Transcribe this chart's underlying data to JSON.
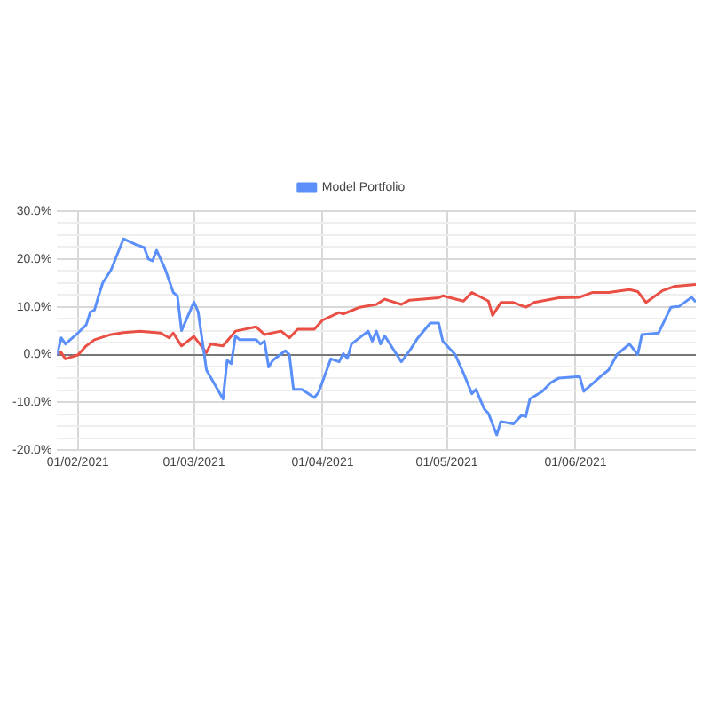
{
  "chart_data": {
    "type": "line",
    "legend": "top",
    "grid": true,
    "marker": "none",
    "line_style": "solid",
    "xlim": [
      "2021-01-27",
      "2021-06-30"
    ],
    "xticks": [
      {
        "value": "2021-02-01",
        "label": "01/02/2021"
      },
      {
        "value": "2021-03-01",
        "label": "01/03/2021"
      },
      {
        "value": "2021-04-01",
        "label": "01/04/2021"
      },
      {
        "value": "2021-05-01",
        "label": "01/05/2021"
      },
      {
        "value": "2021-06-01",
        "label": "01/06/2021"
      }
    ],
    "ylim": [
      -20,
      30
    ],
    "yticks": [
      {
        "value": -20,
        "label": "-20.0%"
      },
      {
        "value": -17.5,
        "label": null
      },
      {
        "value": -15,
        "label": null
      },
      {
        "value": -12.5,
        "label": null
      },
      {
        "value": -10,
        "label": "-10.0%"
      },
      {
        "value": -7.5,
        "label": null
      },
      {
        "value": -5,
        "label": null
      },
      {
        "value": -2.5,
        "label": null
      },
      {
        "value": 0,
        "label": "0.0%"
      },
      {
        "value": 2.5,
        "label": null
      },
      {
        "value": 5,
        "label": null
      },
      {
        "value": 7.5,
        "label": null
      },
      {
        "value": 10,
        "label": "10.0%"
      },
      {
        "value": 12.5,
        "label": null
      },
      {
        "value": 15,
        "label": null
      },
      {
        "value": 17.5,
        "label": null
      },
      {
        "value": 20,
        "label": "20.0%"
      },
      {
        "value": 22.5,
        "label": null
      },
      {
        "value": 25,
        "label": null
      },
      {
        "value": 27.5,
        "label": null
      },
      {
        "value": 30,
        "label": "30.0%"
      }
    ],
    "series": [
      {
        "name": "Model Portfolio",
        "color": "#5b8ff9",
        "x": [
          "2021-01-27",
          "2021-01-28",
          "2021-01-29",
          "2021-02-01",
          "2021-02-03",
          "2021-02-04",
          "2021-02-05",
          "2021-02-06",
          "2021-02-07",
          "2021-02-09",
          "2021-02-12",
          "2021-02-15",
          "2021-02-17",
          "2021-02-18",
          "2021-02-19",
          "2021-02-20",
          "2021-02-22",
          "2021-02-24",
          "2021-02-25",
          "2021-02-26",
          "2021-03-01",
          "2021-03-02",
          "2021-03-04",
          "2021-03-08",
          "2021-03-09",
          "2021-03-10",
          "2021-03-11",
          "2021-03-12",
          "2021-03-16",
          "2021-03-17",
          "2021-03-18",
          "2021-03-19",
          "2021-03-20",
          "2021-03-23",
          "2021-03-24",
          "2021-03-25",
          "2021-03-27",
          "2021-03-30",
          "2021-03-31",
          "2021-04-03",
          "2021-04-05",
          "2021-04-06",
          "2021-04-07",
          "2021-04-08",
          "2021-04-12",
          "2021-04-13",
          "2021-04-14",
          "2021-04-15",
          "2021-04-16",
          "2021-04-20",
          "2021-04-22",
          "2021-04-24",
          "2021-04-27",
          "2021-04-29",
          "2021-04-30",
          "2021-05-03",
          "2021-05-05",
          "2021-05-07",
          "2021-05-08",
          "2021-05-10",
          "2021-05-11",
          "2021-05-13",
          "2021-05-14",
          "2021-05-17",
          "2021-05-19",
          "2021-05-20",
          "2021-05-21",
          "2021-05-24",
          "2021-05-26",
          "2021-05-28",
          "2021-06-02",
          "2021-06-03",
          "2021-06-07",
          "2021-06-09",
          "2021-06-11",
          "2021-06-14",
          "2021-06-16",
          "2021-06-17",
          "2021-06-21",
          "2021-06-24",
          "2021-06-26",
          "2021-06-29",
          "2021-06-30"
        ],
        "values": [
          0,
          3.5,
          2.2,
          4.5,
          6.2,
          8.9,
          9.3,
          12.3,
          15,
          17.7,
          24.2,
          23,
          22.4,
          20,
          19.6,
          21.8,
          18,
          13,
          12.3,
          5,
          11,
          9,
          -3.2,
          -9.3,
          -1.2,
          -1.9,
          3.9,
          3.1,
          3.1,
          2.2,
          2.8,
          -2.6,
          -1.2,
          0.8,
          0,
          -7.3,
          -7.3,
          -9,
          -8,
          -0.9,
          -1.5,
          0.2,
          -0.8,
          2.2,
          4.9,
          2.8,
          4.9,
          2.2,
          3.9,
          -1.5,
          0.8,
          3.5,
          6.6,
          6.6,
          2.8,
          0,
          -3.9,
          -8.2,
          -7.3,
          -11.4,
          -12.3,
          -16.8,
          -14,
          -14.5,
          -12.7,
          -13,
          -9.3,
          -7.7,
          -5.9,
          -4.9,
          -4.6,
          -7.7,
          -4.6,
          -3.2,
          0,
          2.2,
          0,
          4.2,
          4.5,
          9.9,
          10.1,
          12,
          11
        ]
      },
      {
        "color": "#ea4f45",
        "x": [
          "2021-01-27",
          "2021-01-28",
          "2021-01-29",
          "2021-02-01",
          "2021-02-03",
          "2021-02-05",
          "2021-02-09",
          "2021-02-12",
          "2021-02-16",
          "2021-02-21",
          "2021-02-23",
          "2021-02-24",
          "2021-02-26",
          "2021-03-01",
          "2021-03-04",
          "2021-03-05",
          "2021-03-08",
          "2021-03-11",
          "2021-03-16",
          "2021-03-18",
          "2021-03-22",
          "2021-03-24",
          "2021-03-26",
          "2021-03-30",
          "2021-04-01",
          "2021-04-05",
          "2021-04-06",
          "2021-04-10",
          "2021-04-14",
          "2021-04-16",
          "2021-04-20",
          "2021-04-22",
          "2021-04-29",
          "2021-04-30",
          "2021-05-05",
          "2021-05-07",
          "2021-05-11",
          "2021-05-12",
          "2021-05-14",
          "2021-05-17",
          "2021-05-20",
          "2021-05-22",
          "2021-05-28",
          "2021-06-02",
          "2021-06-05",
          "2021-06-09",
          "2021-06-14",
          "2021-06-16",
          "2021-06-18",
          "2021-06-22",
          "2021-06-25",
          "2021-06-30"
        ],
        "values": [
          0.4,
          0.4,
          -0.9,
          -0.1,
          1.8,
          3.1,
          4.2,
          4.6,
          4.9,
          4.5,
          3.5,
          4.5,
          1.8,
          3.8,
          0.4,
          2.2,
          1.8,
          4.9,
          5.8,
          4.2,
          4.9,
          3.5,
          5.3,
          5.3,
          7.2,
          8.8,
          8.5,
          9.9,
          10.5,
          11.6,
          10.5,
          11.4,
          11.9,
          12.3,
          11.2,
          13,
          11.2,
          8.2,
          10.9,
          10.9,
          9.9,
          10.9,
          11.9,
          12,
          13,
          13,
          13.6,
          13.2,
          10.9,
          13.4,
          14.3,
          14.7
        ]
      }
    ]
  }
}
